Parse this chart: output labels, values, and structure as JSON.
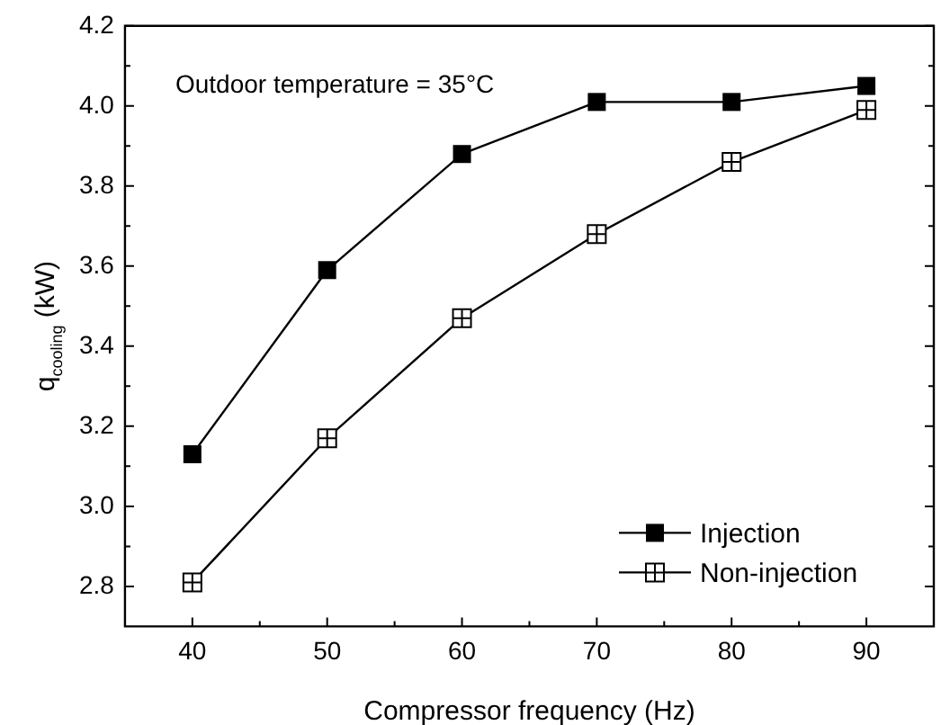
{
  "chart_data": {
    "type": "line",
    "xlabel": "Compressor frequency (Hz)",
    "ylabel": "q$_{cooling}$ (kW)",
    "x": [
      40,
      50,
      60,
      70,
      80,
      90
    ],
    "series": [
      {
        "name": "Injection",
        "color": "#000000",
        "values": [
          3.13,
          3.59,
          3.88,
          4.01,
          4.01,
          4.05
        ],
        "marker": "square"
      },
      {
        "name": "Non-injection",
        "color": "#000000",
        "values": [
          2.81,
          3.17,
          3.47,
          3.68,
          3.86,
          3.99
        ],
        "marker": "square-cross"
      }
    ],
    "xlim": [
      35,
      95
    ],
    "xticks": [
      40,
      50,
      60,
      70,
      80,
      90
    ],
    "ylim": [
      2.7,
      4.2
    ],
    "yticks": [
      2.8,
      {
        "value": 3,
        "label": "3.0"
      },
      3.2,
      3.4,
      3.6,
      3.8,
      {
        "value": 4,
        "label": "4.0"
      },
      4.2
    ],
    "annotations": [
      "Outdoor temperature = 35°C"
    ],
    "legend": "bottom right",
    "grid": false
  }
}
